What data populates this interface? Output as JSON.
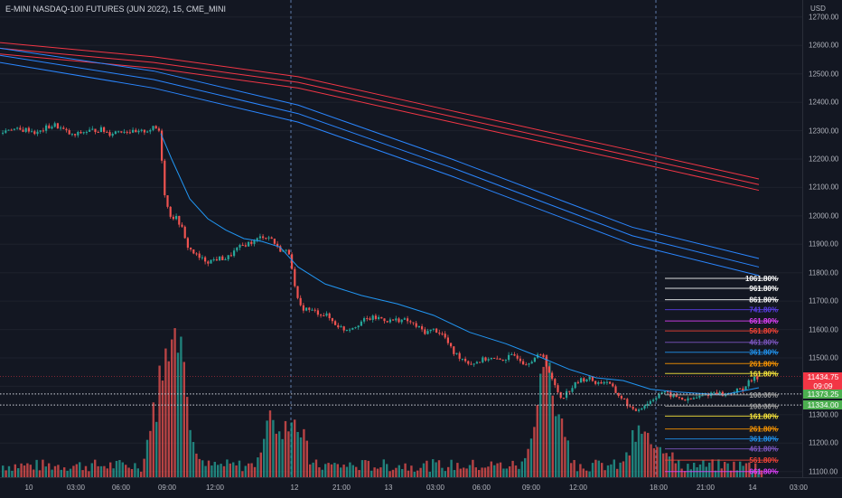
{
  "title": "E-MINI NASDAQ-100 FUTURES (JUN 2022), 15, CME_MINI",
  "currency": "USD",
  "colors": {
    "up": "#26a69a",
    "down": "#ef5350",
    "ma": "#2196f3",
    "red_band": "#f23645",
    "blue_band": "#2962ff"
  },
  "price_axis": {
    "ticks": [
      "12700.00",
      "12600.00",
      "12500.00",
      "12400.00",
      "12300.00",
      "12200.00",
      "12100.00",
      "12000.00",
      "11900.00",
      "11800.00",
      "11700.00",
      "11600.00",
      "11500.00",
      "11400.00",
      "11300.00",
      "11200.00",
      "11100.00"
    ],
    "tags": [
      {
        "price": "11434.75",
        "time": "09:09",
        "color": "#f23645"
      },
      {
        "price": "11373.25",
        "color": "#4caf50"
      },
      {
        "price": "11334.00",
        "color": "#4caf50"
      }
    ]
  },
  "time_axis": {
    "ticks": [
      "10",
      "03:00",
      "06:00",
      "09:00",
      "12:00",
      "12",
      "21:00",
      "13",
      "03:00",
      "06:00",
      "09:00",
      "12:00",
      "18:00",
      "21:00",
      "14",
      "03:00"
    ]
  },
  "fib_levels": [
    {
      "label": "1061.80%",
      "color": "#ffffff"
    },
    {
      "label": "961.80%",
      "color": "#ffffff"
    },
    {
      "label": "861.80%",
      "color": "#ffffff"
    },
    {
      "label": "741.80%",
      "color": "#5b3ee8"
    },
    {
      "label": "661.80%",
      "color": "#e040fb"
    },
    {
      "label": "561.80%",
      "color": "#f44336"
    },
    {
      "label": "461.80%",
      "color": "#7e57c2"
    },
    {
      "label": "361.80%",
      "color": "#2196f3"
    },
    {
      "label": "261.80%",
      "color": "#ff9800"
    },
    {
      "label": "161.80%",
      "color": "#ffeb3b"
    },
    {
      "label": "100.00%",
      "color": "#9e9e9e"
    },
    {
      "label": "100.00%",
      "color": "#9e9e9e"
    },
    {
      "label": "161.80%",
      "color": "#ffeb3b"
    },
    {
      "label": "261.80%",
      "color": "#ff9800"
    },
    {
      "label": "361.80%",
      "color": "#2196f3"
    },
    {
      "label": "461.80%",
      "color": "#7e57c2"
    },
    {
      "label": "561.80%",
      "color": "#f44336"
    },
    {
      "label": "661.80%",
      "color": "#e040fb"
    }
  ],
  "chart_data": {
    "type": "candlestick",
    "symbol": "E-MINI NASDAQ-100 FUTURES (JUN 2022)",
    "interval": "15",
    "ylim": [
      11080,
      12760
    ],
    "price_path": [
      [
        0,
        12290
      ],
      [
        10,
        12310
      ],
      [
        20,
        12300
      ],
      [
        30,
        12305
      ],
      [
        40,
        12290
      ],
      [
        50,
        12310
      ],
      [
        60,
        12320
      ],
      [
        70,
        12300
      ],
      [
        80,
        12280
      ],
      [
        90,
        12295
      ],
      [
        100,
        12300
      ],
      [
        110,
        12305
      ],
      [
        120,
        12290
      ],
      [
        130,
        12300
      ],
      [
        140,
        12300
      ],
      [
        150,
        12290
      ],
      [
        160,
        12300
      ],
      [
        170,
        12310
      ],
      [
        175,
        12300
      ],
      [
        178,
        12200
      ],
      [
        182,
        12050
      ],
      [
        188,
        12000
      ],
      [
        195,
        11990
      ],
      [
        200,
        11960
      ],
      [
        205,
        11900
      ],
      [
        210,
        11880
      ],
      [
        220,
        11850
      ],
      [
        230,
        11840
      ],
      [
        240,
        11850
      ],
      [
        250,
        11850
      ],
      [
        260,
        11880
      ],
      [
        270,
        11900
      ],
      [
        280,
        11910
      ],
      [
        290,
        11930
      ],
      [
        300,
        11920
      ],
      [
        305,
        11890
      ],
      [
        310,
        11880
      ],
      [
        320,
        11870
      ],
      [
        325,
        11750
      ],
      [
        330,
        11680
      ],
      [
        340,
        11670
      ],
      [
        350,
        11660
      ],
      [
        360,
        11650
      ],
      [
        370,
        11620
      ],
      [
        380,
        11600
      ],
      [
        390,
        11610
      ],
      [
        400,
        11630
      ],
      [
        410,
        11640
      ],
      [
        420,
        11640
      ],
      [
        430,
        11630
      ],
      [
        440,
        11635
      ],
      [
        450,
        11630
      ],
      [
        460,
        11610
      ],
      [
        470,
        11590
      ],
      [
        480,
        11600
      ],
      [
        490,
        11580
      ],
      [
        500,
        11520
      ],
      [
        510,
        11500
      ],
      [
        520,
        11480
      ],
      [
        530,
        11490
      ],
      [
        540,
        11500
      ],
      [
        550,
        11490
      ],
      [
        560,
        11500
      ],
      [
        570,
        11510
      ],
      [
        580,
        11480
      ],
      [
        590,
        11500
      ],
      [
        600,
        11510
      ],
      [
        610,
        11420
      ],
      [
        620,
        11360
      ],
      [
        630,
        11390
      ],
      [
        640,
        11420
      ],
      [
        650,
        11430
      ],
      [
        660,
        11410
      ],
      [
        670,
        11420
      ],
      [
        680,
        11380
      ],
      [
        690,
        11350
      ],
      [
        700,
        11310
      ],
      [
        710,
        11330
      ],
      [
        720,
        11350
      ],
      [
        730,
        11380
      ],
      [
        740,
        11370
      ],
      [
        750,
        11360
      ],
      [
        760,
        11350
      ],
      [
        770,
        11360
      ],
      [
        780,
        11370
      ],
      [
        790,
        11380
      ],
      [
        800,
        11370
      ],
      [
        810,
        11380
      ],
      [
        820,
        11390
      ],
      [
        830,
        11420
      ],
      [
        840,
        11434.75
      ]
    ],
    "moving_average": [
      [
        178,
        12290
      ],
      [
        190,
        12200
      ],
      [
        210,
        12060
      ],
      [
        230,
        11990
      ],
      [
        250,
        11950
      ],
      [
        270,
        11920
      ],
      [
        290,
        11910
      ],
      [
        310,
        11890
      ],
      [
        330,
        11820
      ],
      [
        360,
        11760
      ],
      [
        400,
        11720
      ],
      [
        440,
        11690
      ],
      [
        480,
        11650
      ],
      [
        520,
        11590
      ],
      [
        560,
        11550
      ],
      [
        600,
        11500
      ],
      [
        630,
        11460
      ],
      [
        660,
        11430
      ],
      [
        690,
        11420
      ],
      [
        720,
        11390
      ],
      [
        750,
        11380
      ],
      [
        800,
        11370
      ],
      [
        840,
        11395
      ]
    ],
    "bands_red": [
      [
        [
          0,
          12610
        ],
        [
          170,
          12560
        ],
        [
          330,
          12490
        ],
        [
          500,
          12370
        ],
        [
          700,
          12230
        ],
        [
          840,
          12130
        ]
      ],
      [
        [
          0,
          12590
        ],
        [
          170,
          12540
        ],
        [
          330,
          12470
        ],
        [
          500,
          12350
        ],
        [
          700,
          12210
        ],
        [
          840,
          12110
        ]
      ],
      [
        [
          0,
          12570
        ],
        [
          170,
          12520
        ],
        [
          330,
          12450
        ],
        [
          500,
          12330
        ],
        [
          700,
          12190
        ],
        [
          840,
          12090
        ]
      ]
    ],
    "bands_blue": [
      [
        [
          0,
          12590
        ],
        [
          170,
          12510
        ],
        [
          330,
          12390
        ],
        [
          500,
          12200
        ],
        [
          700,
          11960
        ],
        [
          840,
          11850
        ]
      ],
      [
        [
          0,
          12565
        ],
        [
          170,
          12480
        ],
        [
          330,
          12360
        ],
        [
          500,
          12170
        ],
        [
          700,
          11930
        ],
        [
          840,
          11820
        ]
      ],
      [
        [
          0,
          12540
        ],
        [
          170,
          12450
        ],
        [
          330,
          12330
        ],
        [
          500,
          12140
        ],
        [
          700,
          11900
        ],
        [
          840,
          11790
        ]
      ]
    ],
    "volume_peaks": [
      [
        177,
        "down",
        0.72
      ],
      [
        193,
        "up",
        0.82
      ],
      [
        200,
        "down",
        0.55
      ],
      [
        300,
        "down",
        0.46
      ],
      [
        325,
        "down",
        0.44
      ],
      [
        596,
        "up",
        0.55
      ],
      [
        607,
        "down",
        0.45
      ],
      [
        618,
        "up",
        0.3
      ],
      [
        705,
        "up",
        0.3
      ],
      [
        728,
        "up",
        0.25
      ]
    ],
    "dashed_session_lines_x": [
      322,
      726
    ],
    "horizontal_dotted_prices": [
      11373.25,
      11334.0
    ],
    "fib_prices": [
      11780,
      11745,
      11705,
      11670,
      11630,
      11595,
      11555,
      11520,
      11480,
      11445,
      11370,
      11330,
      11295,
      11250,
      11215,
      11180,
      11140,
      11100
    ]
  }
}
